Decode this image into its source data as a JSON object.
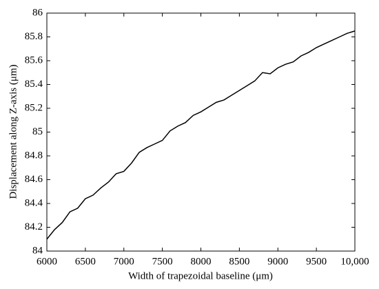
{
  "chart_data": {
    "type": "line",
    "x_label": "Width of trapezoidal baseline (μm)",
    "y_label": "Displacement along Z-axis (μm)",
    "x": [
      6000,
      6100,
      6200,
      6300,
      6400,
      6500,
      6600,
      6700,
      6800,
      6900,
      7000,
      7100,
      7200,
      7300,
      7400,
      7500,
      7600,
      7700,
      7800,
      7900,
      8000,
      8100,
      8200,
      8300,
      8400,
      8500,
      8600,
      8700,
      8800,
      8900,
      9000,
      9100,
      9200,
      9300,
      9400,
      9500,
      9600,
      9700,
      9800,
      9900,
      10000
    ],
    "series": [
      {
        "color": "#000000",
        "values": [
          84.1,
          84.18,
          84.24,
          84.33,
          84.36,
          84.44,
          84.47,
          84.53,
          84.58,
          84.65,
          84.67,
          84.74,
          84.83,
          84.87,
          84.9,
          84.93,
          85.01,
          85.05,
          85.08,
          85.14,
          85.17,
          85.21,
          85.25,
          85.27,
          85.31,
          85.35,
          85.39,
          85.43,
          85.5,
          85.49,
          85.54,
          85.57,
          85.59,
          85.64,
          85.67,
          85.71,
          85.74,
          85.77,
          85.8,
          85.83,
          85.85
        ]
      }
    ],
    "xlim": [
      6000,
      10000
    ],
    "xticks": [
      6000,
      6500,
      7000,
      7500,
      8000,
      8500,
      9000,
      9500,
      {
        "value": 10000,
        "label": "10,000"
      }
    ],
    "ylim": [
      84,
      86
    ],
    "yticks": [
      84,
      84.2,
      84.4,
      84.6,
      84.8,
      85,
      85.2,
      85.4,
      85.6,
      85.8,
      86
    ],
    "grid": false
  }
}
